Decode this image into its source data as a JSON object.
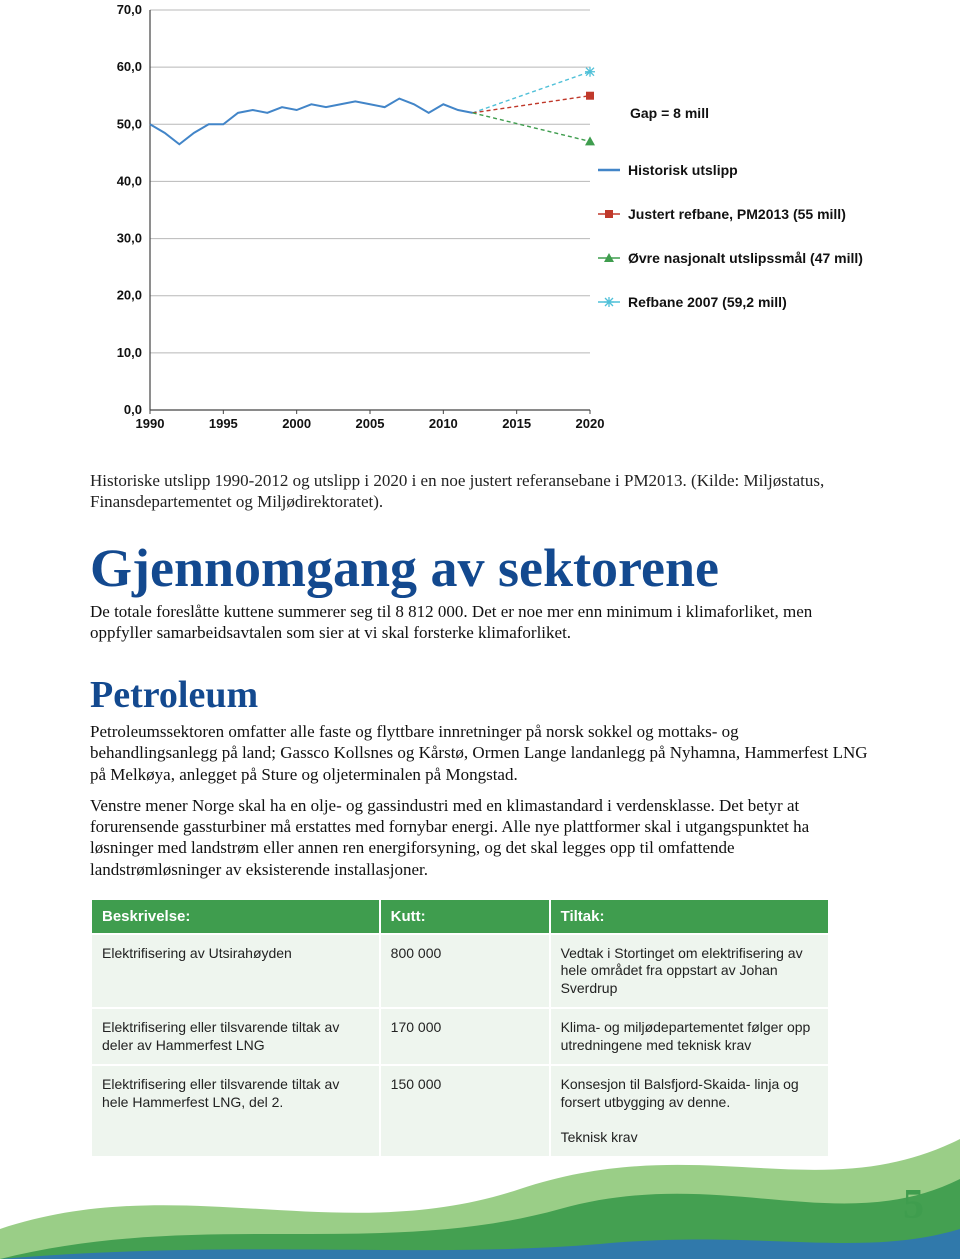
{
  "chart": {
    "type": "line",
    "background_color": "#ffffff",
    "axis_color": "#444444",
    "grid_color": "#b8b8b8",
    "tick_font_size": 13,
    "x": {
      "min": 1990,
      "max": 2020,
      "tick_step": 5,
      "labels": [
        "1990",
        "1995",
        "2000",
        "2005",
        "2010",
        "2015",
        "2020"
      ]
    },
    "y": {
      "min": 0,
      "max": 70,
      "tick_step": 10,
      "labels": [
        "0,0",
        "10,0",
        "20,0",
        "30,0",
        "40,0",
        "50,0",
        "60,0",
        "70,0"
      ]
    },
    "series": {
      "historisk": {
        "label": "Historisk utslipp",
        "color": "#4285c8",
        "stroke_width": 2,
        "points": [
          [
            1990,
            50.0
          ],
          [
            1991,
            48.5
          ],
          [
            1992,
            46.5
          ],
          [
            1993,
            48.5
          ],
          [
            1994,
            50.0
          ],
          [
            1995,
            50.0
          ],
          [
            1996,
            52.0
          ],
          [
            1997,
            52.5
          ],
          [
            1998,
            52.0
          ],
          [
            1999,
            53.0
          ],
          [
            2000,
            52.5
          ],
          [
            2001,
            53.5
          ],
          [
            2002,
            53.0
          ],
          [
            2003,
            53.5
          ],
          [
            2004,
            54.0
          ],
          [
            2005,
            53.5
          ],
          [
            2006,
            53.0
          ],
          [
            2007,
            54.5
          ],
          [
            2008,
            53.5
          ],
          [
            2009,
            52.0
          ],
          [
            2010,
            53.5
          ],
          [
            2011,
            52.5
          ],
          [
            2012,
            52.0
          ]
        ]
      },
      "ref2007": {
        "label": "Refbane 2007 (59,2 mill)",
        "color": "#4fc0d8",
        "marker": "asterisk",
        "dash": "4 3",
        "points": [
          [
            2012,
            52.0
          ],
          [
            2020,
            59.2
          ]
        ]
      },
      "justert": {
        "label": "Justert refbane, PM2013 (55 mill)",
        "color": "#c0392b",
        "marker": "square",
        "dash": "4 3",
        "points": [
          [
            2012,
            52.0
          ],
          [
            2020,
            55.0
          ]
        ]
      },
      "ovre": {
        "label": "Øvre nasjonalt utslipssmål (47 mill)",
        "color": "#3f9d4e",
        "marker": "triangle",
        "dash": "4 3",
        "points": [
          [
            2012,
            52.0
          ],
          [
            2020,
            47.0
          ]
        ]
      }
    },
    "gap_label": "Gap = 8 mill",
    "gap_font_size": 15
  },
  "caption": "Historiske utslipp 1990-2012 og utslipp i 2020 i en noe justert referansebane i PM2013. (Kilde: Miljøstatus, Finansdepartementet og Miljødirektoratet).",
  "heading1": "Gjennomgang av sektorene",
  "intro": "De totale foreslåtte kuttene summerer seg til 8 812 000. Det er noe mer enn minimum i klimaforliket, men oppfyller samarbeidsavtalen som sier at vi skal forsterke klimaforliket.",
  "heading2": "Petroleum",
  "para1": "Petroleumssektoren omfatter alle faste og flyttbare innretninger på norsk sokkel og mottaks- og behandlingsanlegg på land; Gassco Kollsnes og Kårstø, Ormen Lange landanlegg på Nyhamna, Hammerfest LNG på Melkøya, anlegget på Sture og oljeterminalen på Mongstad.",
  "para2": "Venstre mener Norge skal ha en olje- og gassindustri med en klimastandard i verdensklasse. Det betyr at forurensende gassturbiner må erstattes med fornybar energi. Alle nye plattformer skal i utgangspunktet ha løsninger med landstrøm eller annen ren energiforsyning, og det skal legges opp til omfattende landstrømløsninger av eksisterende installasjoner.",
  "table": {
    "header_bg": "#3f9d4e",
    "row_bg": "#eef5ee",
    "columns": [
      "Beskrivelse:",
      "Kutt:",
      "Tiltak:"
    ],
    "rows": [
      [
        "Elektrifisering av Utsirahøyden",
        "800 000",
        "Vedtak i Stortinget om elektrifisering av hele området fra oppstart av Johan Sverdrup"
      ],
      [
        "Elektrifisering eller tilsvarende tiltak av deler av Hammerfest LNG",
        "170 000",
        "Klima- og miljødepartementet følger opp utredningene med teknisk krav"
      ],
      [
        "Elektrifisering eller tilsvarende tiltak av hele Hammerfest LNG, del 2.",
        "150 000",
        "Konsesjon til Balsfjord-Skaida- linja og forsert utbygging av denne.\n\nTeknisk krav"
      ]
    ]
  },
  "page_number": "5",
  "footer_colors": {
    "green_light": "#8fc97a",
    "green_dark": "#3f9d4e",
    "blue": "#2f74b5"
  }
}
